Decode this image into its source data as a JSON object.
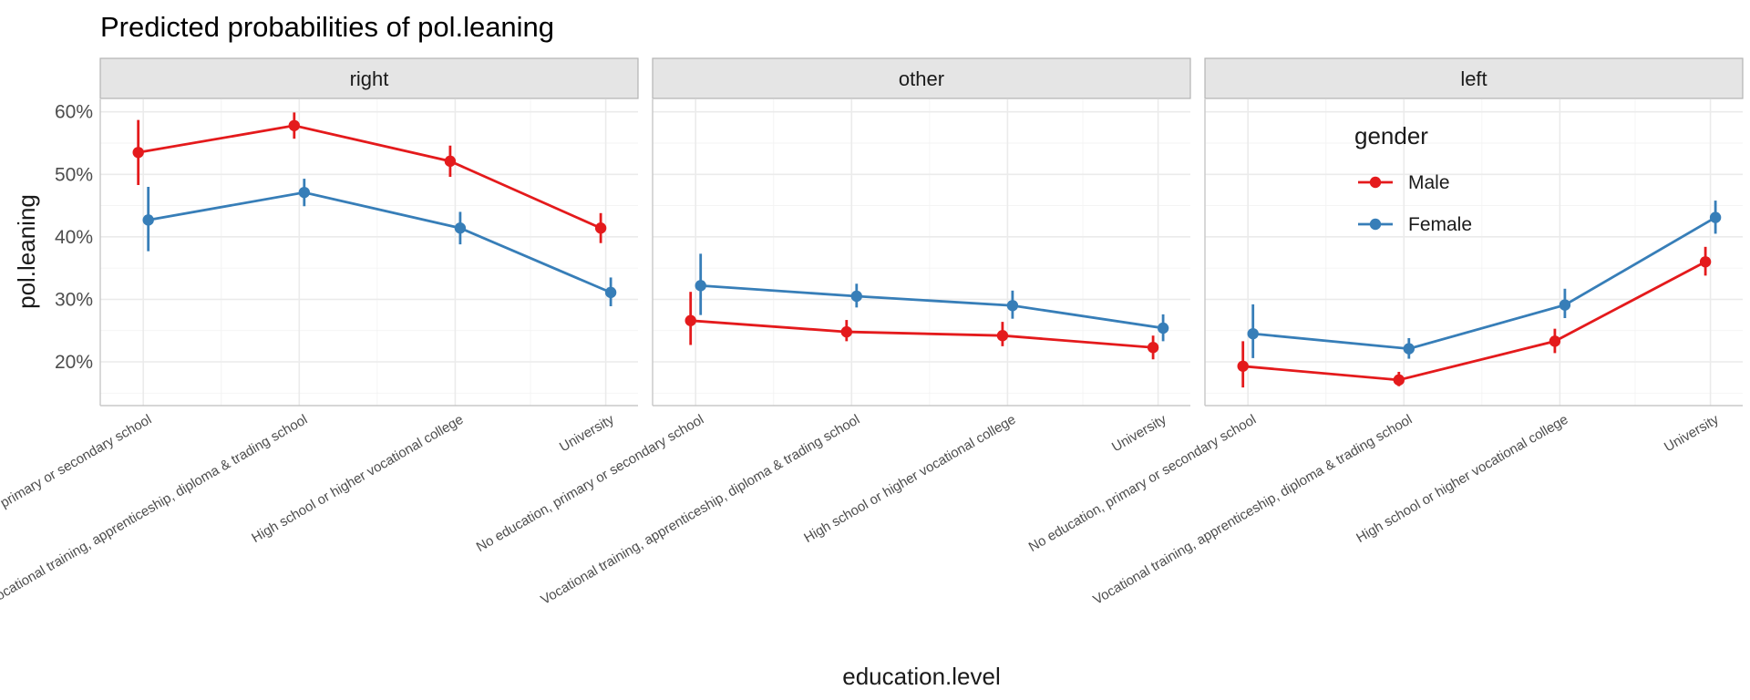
{
  "chart_data": {
    "type": "line",
    "title": "Predicted probabilities of pol.leaning",
    "xlabel": "education.level",
    "ylabel": "pol.leaning",
    "ylim": [
      0.13,
      0.62
    ],
    "yticks": [
      0.2,
      0.3,
      0.4,
      0.5,
      0.6
    ],
    "ytick_labels": [
      "20%",
      "30%",
      "40%",
      "50%",
      "60%"
    ],
    "grid": true,
    "legend": {
      "title": "gender",
      "placement": "inside top-right of last panel"
    },
    "categories": [
      "No education, primary or secondary school",
      "Vocational training, apprenticeship, diploma & trading school",
      "High school or higher vocational college",
      "University"
    ],
    "colors": {
      "Male": "#e41a1c",
      "Female": "#377eb8"
    },
    "panels": [
      {
        "label": "right",
        "series": [
          {
            "name": "Male",
            "values": [
              0.535,
              0.578,
              0.521,
              0.414
            ],
            "lower": [
              0.483,
              0.557,
              0.496,
              0.39
            ],
            "upper": [
              0.587,
              0.599,
              0.546,
              0.438
            ]
          },
          {
            "name": "Female",
            "values": [
              0.427,
              0.471,
              0.414,
              0.311
            ],
            "lower": [
              0.377,
              0.449,
              0.388,
              0.289
            ],
            "upper": [
              0.48,
              0.493,
              0.44,
              0.335
            ]
          }
        ]
      },
      {
        "label": "other",
        "series": [
          {
            "name": "Male",
            "values": [
              0.266,
              0.248,
              0.242,
              0.223
            ],
            "lower": [
              0.227,
              0.233,
              0.225,
              0.204
            ],
            "upper": [
              0.312,
              0.267,
              0.264,
              0.242
            ]
          },
          {
            "name": "Female",
            "values": [
              0.322,
              0.305,
              0.29,
              0.254
            ],
            "lower": [
              0.275,
              0.287,
              0.269,
              0.233
            ],
            "upper": [
              0.373,
              0.325,
              0.314,
              0.276
            ]
          }
        ]
      },
      {
        "label": "left",
        "series": [
          {
            "name": "Male",
            "values": [
              0.193,
              0.171,
              0.233,
              0.36
            ],
            "lower": [
              0.159,
              0.161,
              0.214,
              0.338
            ],
            "upper": [
              0.233,
              0.184,
              0.253,
              0.384
            ]
          },
          {
            "name": "Female",
            "values": [
              0.245,
              0.221,
              0.291,
              0.431
            ],
            "lower": [
              0.206,
              0.205,
              0.27,
              0.405
            ],
            "upper": [
              0.292,
              0.238,
              0.317,
              0.458
            ]
          }
        ]
      }
    ]
  }
}
